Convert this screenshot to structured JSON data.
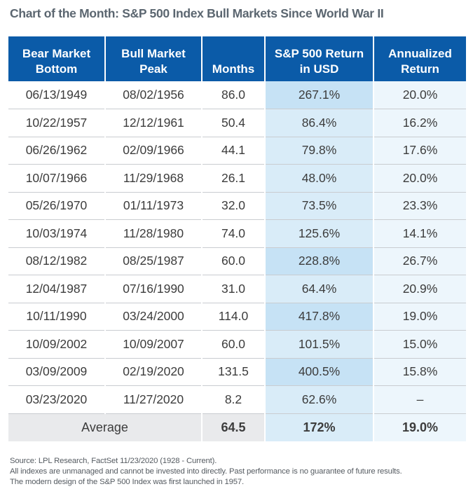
{
  "title": "Chart of the Month: S&P 500 Index Bull Markets Since World War II",
  "colors": {
    "header_bg": "#0b5ba8",
    "return_bg_light": "#d9ecf8",
    "return_bg_strong": "#c6e2f5",
    "annualized_bg": "#edf6fc",
    "average_bg": "#e9eaec"
  },
  "chart_data": {
    "type": "table",
    "columns": [
      "Bear Market Bottom",
      "Bull Market Peak",
      "Months",
      "S&P 500 Return in USD",
      "Annualized Return"
    ],
    "rows": [
      [
        "06/13/1949",
        "08/02/1956",
        "86.0",
        "267.1%",
        "20.0%"
      ],
      [
        "10/22/1957",
        "12/12/1961",
        "50.4",
        "86.4%",
        "16.2%"
      ],
      [
        "06/26/1962",
        "02/09/1966",
        "44.1",
        "79.8%",
        "17.6%"
      ],
      [
        "10/07/1966",
        "11/29/1968",
        "26.1",
        "48.0%",
        "20.0%"
      ],
      [
        "05/26/1970",
        "01/11/1973",
        "32.0",
        "73.5%",
        "23.3%"
      ],
      [
        "10/03/1974",
        "11/28/1980",
        "74.0",
        "125.6%",
        "14.1%"
      ],
      [
        "08/12/1982",
        "08/25/1987",
        "60.0",
        "228.8%",
        "26.7%"
      ],
      [
        "12/04/1987",
        "07/16/1990",
        "31.0",
        "64.4%",
        "20.9%"
      ],
      [
        "10/11/1990",
        "03/24/2000",
        "114.0",
        "417.8%",
        "19.0%"
      ],
      [
        "10/09/2002",
        "10/09/2007",
        "60.0",
        "101.5%",
        "15.0%"
      ],
      [
        "03/09/2009",
        "02/19/2020",
        "131.5",
        "400.5%",
        "15.8%"
      ],
      [
        "03/23/2020",
        "11/27/2020",
        "8.2",
        "62.6%",
        "–"
      ]
    ],
    "average": {
      "label": "Average",
      "months": "64.5",
      "return": "172%",
      "annualized": "19.0%"
    }
  },
  "notes": [
    "Source: LPL Research, FactSet 11/23/2020 (1928 - Current).",
    "All indexes are unmanaged and cannot be invested into directly. Past performance is no guarantee of future results.",
    "The modern design of the S&P 500 Index was first launched in 1957."
  ]
}
